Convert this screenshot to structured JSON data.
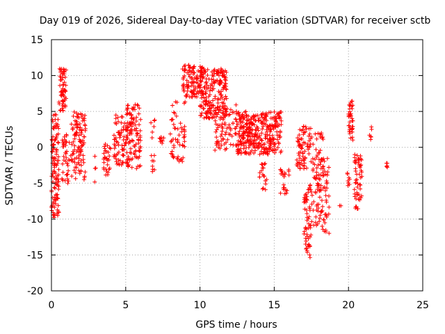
{
  "chart_data": {
    "type": "scatter",
    "title": "Day 019 of 2026, Sidereal Day-to-day VTEC variation (SDTVAR) for receiver sctb",
    "xlabel": "GPS time / hours",
    "ylabel": "SDTVAR / TECUs",
    "xlim": [
      0,
      25
    ],
    "ylim": [
      -20,
      15
    ],
    "xticks": [
      0,
      5,
      10,
      15,
      20,
      25
    ],
    "yticks": [
      -20,
      -15,
      -10,
      -5,
      0,
      5,
      10,
      15
    ],
    "grid": true,
    "marker": "+",
    "color": "#ff0000",
    "clusters": [
      {
        "x": [
          0.0,
          0.5
        ],
        "y": [
          -10,
          5
        ],
        "n": 110
      },
      {
        "x": [
          0.5,
          1.0
        ],
        "y": [
          5,
          11
        ],
        "n": 60
      },
      {
        "x": [
          0.7,
          1.2
        ],
        "y": [
          -5,
          2
        ],
        "n": 40
      },
      {
        "x": [
          1.3,
          2.3
        ],
        "y": [
          -4.5,
          5
        ],
        "n": 110
      },
      {
        "x": [
          2.8,
          3.0
        ],
        "y": [
          -5,
          -1
        ],
        "n": 4
      },
      {
        "x": [
          3.5,
          4.0
        ],
        "y": [
          -4,
          0.5
        ],
        "n": 30
      },
      {
        "x": [
          4.2,
          5.0
        ],
        "y": [
          -2.5,
          4.5
        ],
        "n": 60
      },
      {
        "x": [
          5.0,
          6.0
        ],
        "y": [
          -3,
          6
        ],
        "n": 120
      },
      {
        "x": [
          6.7,
          7.0
        ],
        "y": [
          -4,
          4
        ],
        "n": 14
      },
      {
        "x": [
          7.2,
          7.6
        ],
        "y": [
          0.5,
          1.5
        ],
        "n": 8
      },
      {
        "x": [
          8.0,
          9.0
        ],
        "y": [
          -2,
          6.5
        ],
        "n": 55
      },
      {
        "x": [
          8.8,
          10.2
        ],
        "y": [
          7,
          11.5
        ],
        "n": 110
      },
      {
        "x": [
          10.0,
          11.8
        ],
        "y": [
          4,
          11
        ],
        "n": 200
      },
      {
        "x": [
          11.0,
          12.5
        ],
        "y": [
          -0.5,
          6
        ],
        "n": 80
      },
      {
        "x": [
          12.5,
          15.5
        ],
        "y": [
          -1,
          5
        ],
        "n": 340
      },
      {
        "x": [
          14.0,
          14.5
        ],
        "y": [
          -6,
          -2
        ],
        "n": 20
      },
      {
        "x": [
          15.4,
          16.0
        ],
        "y": [
          -7,
          -3
        ],
        "n": 22
      },
      {
        "x": [
          16.5,
          17.5
        ],
        "y": [
          -3,
          3
        ],
        "n": 70
      },
      {
        "x": [
          17.0,
          17.5
        ],
        "y": [
          -16,
          -5
        ],
        "n": 60
      },
      {
        "x": [
          17.5,
          18.3
        ],
        "y": [
          -11,
          2
        ],
        "n": 80
      },
      {
        "x": [
          18.0,
          18.7
        ],
        "y": [
          -12,
          -1
        ],
        "n": 45
      },
      {
        "x": [
          19.3,
          19.5
        ],
        "y": [
          -8.5,
          -8
        ],
        "n": 2
      },
      {
        "x": [
          19.9,
          20.1
        ],
        "y": [
          -6,
          -3
        ],
        "n": 8
      },
      {
        "x": [
          20.0,
          20.3
        ],
        "y": [
          1,
          6.5
        ],
        "n": 40
      },
      {
        "x": [
          20.4,
          20.9
        ],
        "y": [
          -9,
          -1
        ],
        "n": 55
      },
      {
        "x": [
          21.4,
          21.6
        ],
        "y": [
          1,
          3.5
        ],
        "n": 6
      },
      {
        "x": [
          22.5,
          22.7
        ],
        "y": [
          -2.8,
          -2.2
        ],
        "n": 5
      }
    ]
  }
}
